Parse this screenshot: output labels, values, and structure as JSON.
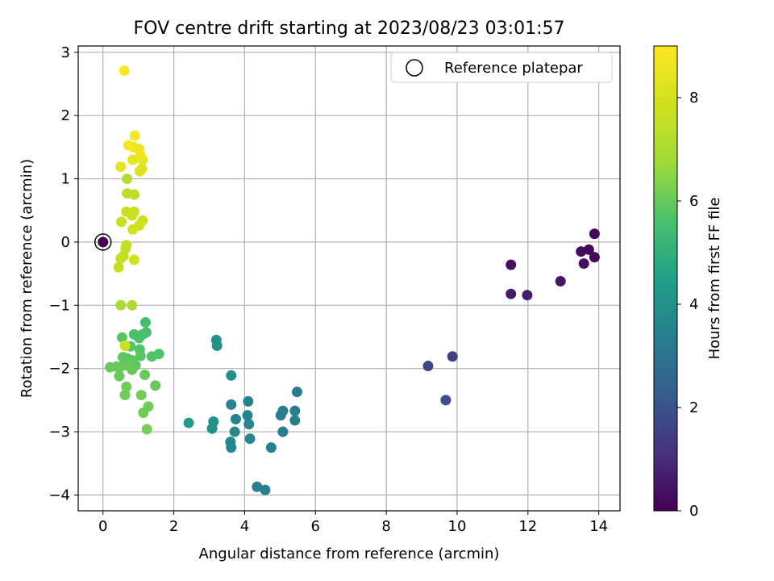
{
  "chart_data": {
    "type": "scatter",
    "title": "FOV centre drift starting at 2023/08/23 03:01:57",
    "xlabel": "Angular distance from reference (arcmin)",
    "ylabel": "Rotation from reference (arcmin)",
    "xlim": [
      -0.7,
      14.6
    ],
    "ylim": [
      -4.25,
      3.1
    ],
    "xticks": [
      0,
      2,
      4,
      6,
      8,
      10,
      12,
      14
    ],
    "yticks": [
      -4,
      -3,
      -2,
      -1,
      0,
      1,
      2,
      3
    ],
    "grid": true,
    "legend": {
      "placement": "top-right",
      "entries": [
        "Reference platepar"
      ]
    },
    "colorbar": {
      "label": "Hours from first FF file",
      "colormap": "viridis",
      "range": [
        0,
        9
      ],
      "ticks": [
        0,
        2,
        4,
        6,
        8
      ]
    },
    "reference_point": {
      "x": 0,
      "y": 0,
      "hours": 0
    },
    "points": [
      {
        "x": 13.88,
        "y": 0.13,
        "h": 0.1
      },
      {
        "x": 13.72,
        "y": -0.12,
        "h": 0.2
      },
      {
        "x": 13.5,
        "y": -0.15,
        "h": 0.2
      },
      {
        "x": 13.88,
        "y": -0.24,
        "h": 0.2
      },
      {
        "x": 13.58,
        "y": -0.34,
        "h": 0.3
      },
      {
        "x": 11.52,
        "y": -0.36,
        "h": 0.4
      },
      {
        "x": 12.92,
        "y": -0.62,
        "h": 0.5
      },
      {
        "x": 11.52,
        "y": -0.82,
        "h": 0.6
      },
      {
        "x": 11.98,
        "y": -0.84,
        "h": 0.7
      },
      {
        "x": 9.87,
        "y": -1.81,
        "h": 1.5
      },
      {
        "x": 9.18,
        "y": -1.96,
        "h": 1.7
      },
      {
        "x": 9.68,
        "y": -2.5,
        "h": 1.9
      },
      {
        "x": 5.48,
        "y": -2.37,
        "h": 3.2
      },
      {
        "x": 5.08,
        "y": -2.67,
        "h": 3.3
      },
      {
        "x": 5.42,
        "y": -2.67,
        "h": 3.3
      },
      {
        "x": 5.02,
        "y": -2.74,
        "h": 3.3
      },
      {
        "x": 5.42,
        "y": -2.82,
        "h": 3.3
      },
      {
        "x": 5.08,
        "y": -3.0,
        "h": 3.3
      },
      {
        "x": 4.75,
        "y": -3.25,
        "h": 3.4
      },
      {
        "x": 4.35,
        "y": -3.87,
        "h": 3.4
      },
      {
        "x": 4.58,
        "y": -3.92,
        "h": 3.4
      },
      {
        "x": 4.1,
        "y": -2.52,
        "h": 3.5
      },
      {
        "x": 3.62,
        "y": -2.57,
        "h": 3.5
      },
      {
        "x": 4.08,
        "y": -2.74,
        "h": 3.5
      },
      {
        "x": 3.75,
        "y": -2.8,
        "h": 3.5
      },
      {
        "x": 4.12,
        "y": -2.88,
        "h": 3.6
      },
      {
        "x": 3.72,
        "y": -3.0,
        "h": 3.6
      },
      {
        "x": 4.15,
        "y": -3.11,
        "h": 3.6
      },
      {
        "x": 3.6,
        "y": -3.16,
        "h": 3.6
      },
      {
        "x": 3.62,
        "y": -3.25,
        "h": 3.6
      },
      {
        "x": 3.62,
        "y": -2.11,
        "h": 3.9
      },
      {
        "x": 3.2,
        "y": -1.55,
        "h": 4.0
      },
      {
        "x": 3.22,
        "y": -1.64,
        "h": 4.0
      },
      {
        "x": 3.12,
        "y": -2.84,
        "h": 4.0
      },
      {
        "x": 3.08,
        "y": -2.95,
        "h": 4.0
      },
      {
        "x": 2.42,
        "y": -2.86,
        "h": 4.3
      },
      {
        "x": 1.2,
        "y": -1.27,
        "h": 5.5
      },
      {
        "x": 1.22,
        "y": -1.43,
        "h": 5.5
      },
      {
        "x": 1.12,
        "y": -1.46,
        "h": 5.6
      },
      {
        "x": 0.88,
        "y": -1.46,
        "h": 5.6
      },
      {
        "x": 1.02,
        "y": -1.52,
        "h": 5.6
      },
      {
        "x": 1.58,
        "y": -1.77,
        "h": 5.7
      },
      {
        "x": 1.38,
        "y": -1.81,
        "h": 5.7
      },
      {
        "x": 1.04,
        "y": -1.7,
        "h": 5.7
      },
      {
        "x": 1.06,
        "y": -1.8,
        "h": 5.8
      },
      {
        "x": 0.54,
        "y": -1.51,
        "h": 5.8
      },
      {
        "x": 0.78,
        "y": -1.65,
        "h": 5.8
      },
      {
        "x": 0.56,
        "y": -1.82,
        "h": 5.9
      },
      {
        "x": 0.68,
        "y": -1.84,
        "h": 5.9
      },
      {
        "x": 0.82,
        "y": -1.87,
        "h": 5.9
      },
      {
        "x": 0.92,
        "y": -1.95,
        "h": 5.9
      },
      {
        "x": 0.72,
        "y": -1.96,
        "h": 6.0
      },
      {
        "x": 0.5,
        "y": -1.97,
        "h": 6.0
      },
      {
        "x": 0.38,
        "y": -1.97,
        "h": 6.0
      },
      {
        "x": 0.2,
        "y": -1.98,
        "h": 6.0
      },
      {
        "x": 0.82,
        "y": -2.02,
        "h": 6.0
      },
      {
        "x": 1.18,
        "y": -2.1,
        "h": 6.0
      },
      {
        "x": 0.46,
        "y": -2.12,
        "h": 6.0
      },
      {
        "x": 1.48,
        "y": -2.27,
        "h": 6.0
      },
      {
        "x": 0.66,
        "y": -2.29,
        "h": 6.1
      },
      {
        "x": 0.62,
        "y": -2.42,
        "h": 6.1
      },
      {
        "x": 1.08,
        "y": -2.42,
        "h": 6.1
      },
      {
        "x": 1.28,
        "y": -2.6,
        "h": 6.1
      },
      {
        "x": 1.14,
        "y": -2.7,
        "h": 6.1
      },
      {
        "x": 1.24,
        "y": -2.96,
        "h": 6.2
      },
      {
        "x": 0.62,
        "y": -1.64,
        "h": 7.8
      },
      {
        "x": 0.5,
        "y": -1.0,
        "h": 7.0
      },
      {
        "x": 0.82,
        "y": -1.0,
        "h": 7.1
      },
      {
        "x": 0.68,
        "y": 1.0,
        "h": 7.2
      },
      {
        "x": 0.68,
        "y": 0.77,
        "h": 7.4
      },
      {
        "x": 0.88,
        "y": 0.75,
        "h": 7.4
      },
      {
        "x": 0.66,
        "y": -0.05,
        "h": 7.5
      },
      {
        "x": 0.64,
        "y": -0.1,
        "h": 7.5
      },
      {
        "x": 0.58,
        "y": -0.22,
        "h": 7.5
      },
      {
        "x": 0.5,
        "y": -0.26,
        "h": 7.6
      },
      {
        "x": 0.44,
        "y": -0.4,
        "h": 7.6
      },
      {
        "x": 0.52,
        "y": 0.32,
        "h": 7.7
      },
      {
        "x": 0.66,
        "y": 0.48,
        "h": 7.7
      },
      {
        "x": 0.88,
        "y": 0.48,
        "h": 7.7
      },
      {
        "x": 0.82,
        "y": 0.42,
        "h": 7.8
      },
      {
        "x": 1.12,
        "y": 0.34,
        "h": 7.8
      },
      {
        "x": 1.02,
        "y": 0.26,
        "h": 7.8
      },
      {
        "x": 0.84,
        "y": 0.2,
        "h": 7.9
      },
      {
        "x": 0.88,
        "y": -0.28,
        "h": 7.9
      },
      {
        "x": 1.04,
        "y": 1.12,
        "h": 8.2
      },
      {
        "x": 1.1,
        "y": 1.16,
        "h": 8.3
      },
      {
        "x": 0.5,
        "y": 1.19,
        "h": 8.4
      },
      {
        "x": 0.84,
        "y": 1.3,
        "h": 8.5
      },
      {
        "x": 1.12,
        "y": 1.3,
        "h": 8.5
      },
      {
        "x": 1.06,
        "y": 1.37,
        "h": 8.6
      },
      {
        "x": 1.02,
        "y": 1.47,
        "h": 8.6
      },
      {
        "x": 0.86,
        "y": 1.5,
        "h": 8.7
      },
      {
        "x": 0.72,
        "y": 1.53,
        "h": 8.8
      },
      {
        "x": 0.9,
        "y": 1.68,
        "h": 8.8
      },
      {
        "x": 0.6,
        "y": 2.71,
        "h": 8.9
      }
    ]
  }
}
